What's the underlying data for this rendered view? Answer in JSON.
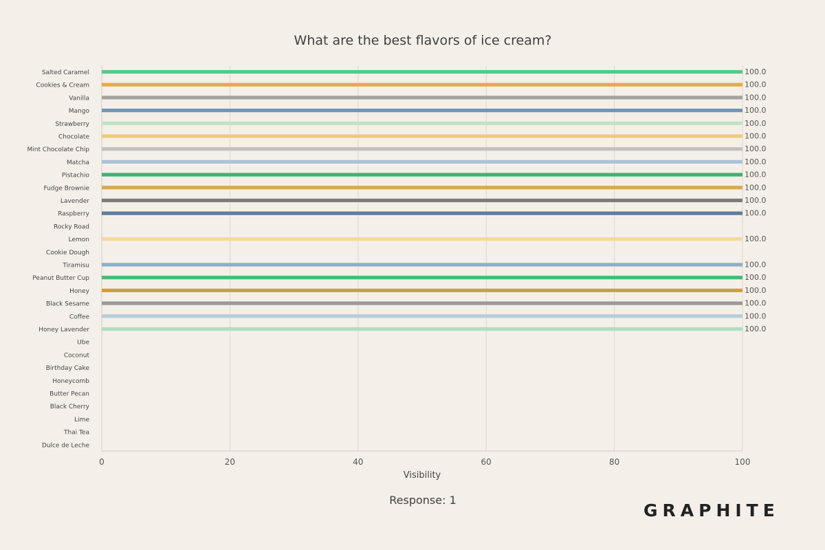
{
  "chart_data": {
    "type": "bar",
    "orientation": "horizontal",
    "title": "What are the best flavors of ice cream?",
    "xlabel": "Visibility",
    "ylabel": "",
    "xlim": [
      0,
      100
    ],
    "x_ticks": [
      "0",
      "20",
      "40",
      "60",
      "80",
      "100"
    ],
    "grid": "vertical",
    "categories": [
      "Salted Caramel",
      "Cookies & Cream",
      "Vanilla",
      "Mango",
      "Strawberry",
      "Chocolate",
      "Mint Chocolate Chip",
      "Matcha",
      "Pistachio",
      "Fudge Brownie",
      "Lavender",
      "Raspberry",
      "Rocky Road",
      "Lemon",
      "Cookie Dough",
      "Tiramisu",
      "Peanut Butter Cup",
      "Honey",
      "Black Sesame",
      "Coffee",
      "Honey Lavender",
      "Ube",
      "Coconut",
      "Birthday Cake",
      "Honeycomb",
      "Butter Pecan",
      "Black Cherry",
      "Lime",
      "Thai Tea",
      "Dulce de Leche"
    ],
    "values": [
      100,
      100,
      100,
      100,
      100,
      100,
      100,
      100,
      100,
      100,
      100,
      100,
      null,
      100,
      null,
      100,
      100,
      100,
      100,
      100,
      100,
      null,
      null,
      null,
      null,
      null,
      null,
      null,
      null,
      null
    ],
    "value_labels": [
      "100.0",
      "100.0",
      "100.0",
      "100.0",
      "100.0",
      "100.0",
      "100.0",
      "100.0",
      "100.0",
      "100.0",
      "100.0",
      "100.0",
      "",
      "100.0",
      "",
      "100.0",
      "100.0",
      "100.0",
      "100.0",
      "100.0",
      "100.0",
      "",
      "",
      "",
      "",
      "",
      "",
      "",
      "",
      ""
    ],
    "colors": [
      "#57c88d",
      "#e6aa47",
      "#a3a3a0",
      "#7294b5",
      "#c1e3c6",
      "#f0ca77",
      "#c2c1bd",
      "#a9c3d9",
      "#40b074",
      "#d9a753",
      "#7e7c78",
      "#5c7f9b",
      "#f4f0e9",
      "#f3d9a0",
      "#f4f0e9",
      "#8eaec6",
      "#3fbf79",
      "#d49c3f",
      "#9b9995",
      "#b6ccdc",
      "#aedfc0",
      "#f4f0e9",
      "#f4f0e9",
      "#f4f0e9",
      "#f4f0e9",
      "#f4f0e9",
      "#f4f0e9",
      "#f4f0e9",
      "#f4f0e9",
      "#f4f0e9"
    ]
  },
  "footer": {
    "response": "Response: 1",
    "brand": "GRAPHITE"
  },
  "theme": {
    "background": "#f4f0e9",
    "grid_color": "#dcd8d0"
  }
}
